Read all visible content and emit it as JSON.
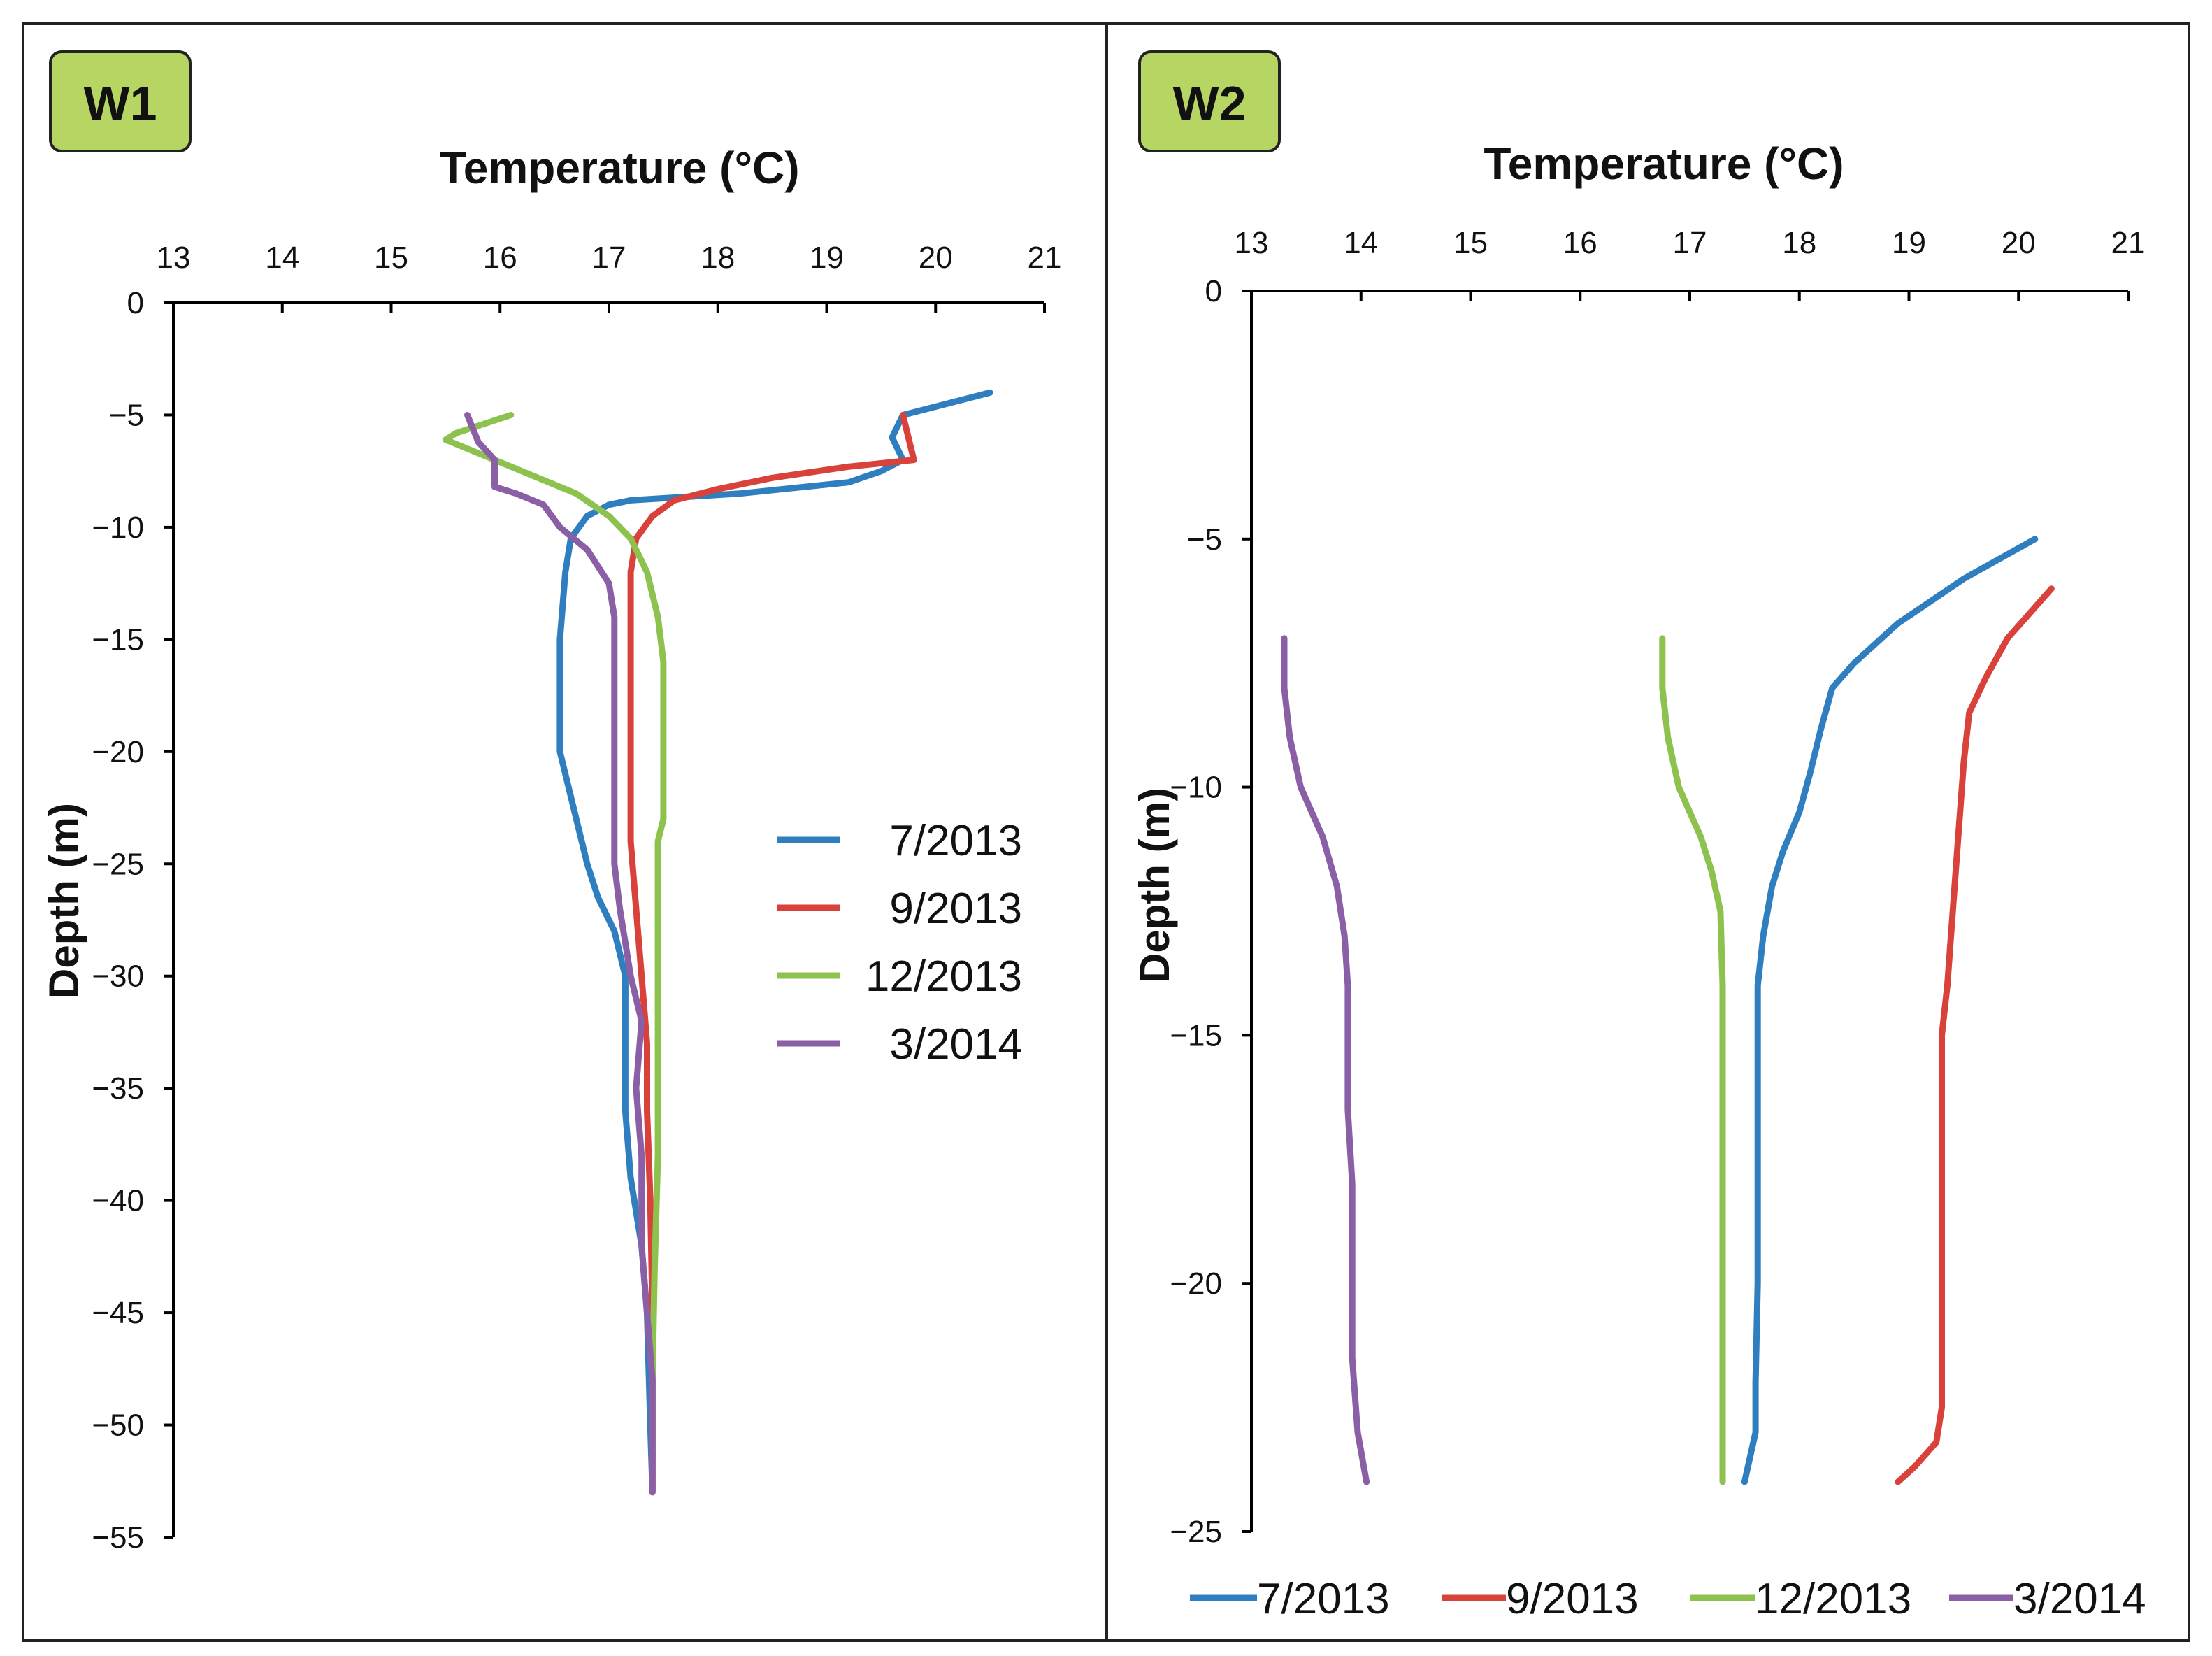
{
  "chart_data": [
    {
      "type": "line",
      "panel_label": "W1",
      "title": "Temperature (°C)",
      "xlabel": "Temperature (°C)",
      "ylabel": "Depth (m)",
      "xlim": [
        13,
        21
      ],
      "ylim": [
        -55,
        0
      ],
      "xticks": [
        "13",
        "14",
        "15",
        "16",
        "17",
        "18",
        "19",
        "20",
        "21"
      ],
      "yticks": [
        "0",
        "−5",
        "−10",
        "−15",
        "−20",
        "−25",
        "−30",
        "−35",
        "−40",
        "−45",
        "−50",
        "−55"
      ],
      "legend_position": "right",
      "series": [
        {
          "name": "7/2013",
          "color": "#2f7fc0",
          "points": [
            [
              20.5,
              -4
            ],
            [
              19.7,
              -5
            ],
            [
              19.6,
              -6
            ],
            [
              19.7,
              -7
            ],
            [
              19.5,
              -7.5
            ],
            [
              19.2,
              -8
            ],
            [
              18.2,
              -8.5
            ],
            [
              17.2,
              -8.8
            ],
            [
              17.0,
              -9
            ],
            [
              16.8,
              -9.5
            ],
            [
              16.65,
              -10.5
            ],
            [
              16.6,
              -12
            ],
            [
              16.55,
              -15
            ],
            [
              16.55,
              -18
            ],
            [
              16.55,
              -20
            ],
            [
              16.6,
              -21
            ],
            [
              16.7,
              -23
            ],
            [
              16.8,
              -25
            ],
            [
              16.9,
              -26.5
            ],
            [
              17.05,
              -28
            ],
            [
              17.15,
              -30
            ],
            [
              17.15,
              -33
            ],
            [
              17.15,
              -36
            ],
            [
              17.2,
              -39
            ],
            [
              17.3,
              -42
            ],
            [
              17.35,
              -45
            ],
            [
              17.38,
              -50
            ],
            [
              17.4,
              -53
            ]
          ]
        },
        {
          "name": "9/2013",
          "color": "#d9413b",
          "points": [
            [
              19.7,
              -5
            ],
            [
              19.75,
              -6
            ],
            [
              19.8,
              -7
            ],
            [
              19.2,
              -7.3
            ],
            [
              18.5,
              -7.8
            ],
            [
              18.0,
              -8.3
            ],
            [
              17.6,
              -8.8
            ],
            [
              17.4,
              -9.5
            ],
            [
              17.25,
              -10.5
            ],
            [
              17.2,
              -12
            ],
            [
              17.2,
              -15
            ],
            [
              17.2,
              -20
            ],
            [
              17.2,
              -24
            ],
            [
              17.25,
              -27
            ],
            [
              17.3,
              -30
            ],
            [
              17.35,
              -33
            ],
            [
              17.35,
              -36
            ],
            [
              17.38,
              -40
            ],
            [
              17.4,
              -45
            ],
            [
              17.4,
              -50
            ],
            [
              17.4,
              -53
            ]
          ]
        },
        {
          "name": "12/2013",
          "color": "#8dc24e",
          "points": [
            [
              16.1,
              -5
            ],
            [
              15.6,
              -5.8
            ],
            [
              15.5,
              -6.1
            ],
            [
              15.8,
              -6.7
            ],
            [
              16.2,
              -7.5
            ],
            [
              16.7,
              -8.5
            ],
            [
              17.0,
              -9.5
            ],
            [
              17.2,
              -10.5
            ],
            [
              17.35,
              -12
            ],
            [
              17.45,
              -14
            ],
            [
              17.5,
              -16
            ],
            [
              17.5,
              -20
            ],
            [
              17.5,
              -23
            ],
            [
              17.45,
              -24
            ],
            [
              17.45,
              -28
            ],
            [
              17.45,
              -33
            ],
            [
              17.45,
              -38
            ],
            [
              17.42,
              -43
            ],
            [
              17.4,
              -48
            ],
            [
              17.4,
              -53
            ]
          ]
        },
        {
          "name": "3/2014",
          "color": "#8a5fa6",
          "points": [
            [
              15.7,
              -5
            ],
            [
              15.8,
              -6.2
            ],
            [
              15.95,
              -7
            ],
            [
              15.95,
              -8.2
            ],
            [
              16.15,
              -8.5
            ],
            [
              16.4,
              -9
            ],
            [
              16.55,
              -10
            ],
            [
              16.8,
              -11
            ],
            [
              17.0,
              -12.5
            ],
            [
              17.05,
              -14
            ],
            [
              17.05,
              -18
            ],
            [
              17.05,
              -22
            ],
            [
              17.05,
              -25
            ],
            [
              17.1,
              -27
            ],
            [
              17.2,
              -30
            ],
            [
              17.3,
              -32
            ],
            [
              17.25,
              -35
            ],
            [
              17.3,
              -38
            ],
            [
              17.3,
              -40
            ],
            [
              17.3,
              -42
            ],
            [
              17.35,
              -45
            ],
            [
              17.4,
              -48
            ],
            [
              17.4,
              -50
            ],
            [
              17.4,
              -53
            ]
          ]
        }
      ]
    },
    {
      "type": "line",
      "panel_label": "W2",
      "title": "Temperature (°C)",
      "xlabel": "Temperature (°C)",
      "ylabel": "Depth (m)",
      "xlim": [
        13,
        21
      ],
      "ylim": [
        -25,
        0
      ],
      "xticks": [
        "13",
        "14",
        "15",
        "16",
        "17",
        "18",
        "19",
        "20",
        "21"
      ],
      "yticks": [
        "0",
        "−5",
        "−10",
        "−15",
        "−20",
        "−25"
      ],
      "legend_position": "bottom",
      "series": [
        {
          "name": "7/2013",
          "color": "#2f7fc0",
          "points": [
            [
              20.15,
              -5
            ],
            [
              19.5,
              -5.8
            ],
            [
              18.9,
              -6.7
            ],
            [
              18.5,
              -7.5
            ],
            [
              18.3,
              -8
            ],
            [
              18.2,
              -8.8
            ],
            [
              18.1,
              -9.7
            ],
            [
              18.0,
              -10.5
            ],
            [
              17.85,
              -11.3
            ],
            [
              17.75,
              -12
            ],
            [
              17.67,
              -13
            ],
            [
              17.62,
              -14
            ],
            [
              17.62,
              -16
            ],
            [
              17.62,
              -18
            ],
            [
              17.62,
              -20
            ],
            [
              17.6,
              -22
            ],
            [
              17.6,
              -23
            ],
            [
              17.5,
              -24
            ]
          ]
        },
        {
          "name": "9/2013",
          "color": "#d9413b",
          "points": [
            [
              20.3,
              -6
            ],
            [
              19.9,
              -7
            ],
            [
              19.7,
              -7.8
            ],
            [
              19.55,
              -8.5
            ],
            [
              19.5,
              -9.5
            ],
            [
              19.45,
              -11
            ],
            [
              19.4,
              -12.5
            ],
            [
              19.35,
              -14
            ],
            [
              19.3,
              -15
            ],
            [
              19.3,
              -17
            ],
            [
              19.3,
              -20
            ],
            [
              19.3,
              -22.5
            ],
            [
              19.25,
              -23.2
            ],
            [
              19.05,
              -23.7
            ],
            [
              18.9,
              -24
            ]
          ]
        },
        {
          "name": "12/2013",
          "color": "#8dc24e",
          "points": [
            [
              16.75,
              -7
            ],
            [
              16.75,
              -8
            ],
            [
              16.8,
              -9
            ],
            [
              16.9,
              -10
            ],
            [
              17.1,
              -11
            ],
            [
              17.2,
              -11.7
            ],
            [
              17.28,
              -12.5
            ],
            [
              17.3,
              -14
            ],
            [
              17.3,
              -16
            ],
            [
              17.3,
              -18
            ],
            [
              17.3,
              -20
            ],
            [
              17.3,
              -22
            ],
            [
              17.3,
              -24
            ]
          ]
        },
        {
          "name": "3/2014",
          "color": "#8a5fa6",
          "points": [
            [
              13.3,
              -7
            ],
            [
              13.3,
              -8
            ],
            [
              13.35,
              -9
            ],
            [
              13.45,
              -10
            ],
            [
              13.65,
              -11
            ],
            [
              13.78,
              -12
            ],
            [
              13.85,
              -13
            ],
            [
              13.88,
              -14
            ],
            [
              13.88,
              -15.5
            ],
            [
              13.88,
              -16.5
            ],
            [
              13.92,
              -18
            ],
            [
              13.92,
              -20
            ],
            [
              13.92,
              -21.5
            ],
            [
              13.97,
              -23
            ],
            [
              14.05,
              -24
            ]
          ]
        }
      ]
    }
  ]
}
